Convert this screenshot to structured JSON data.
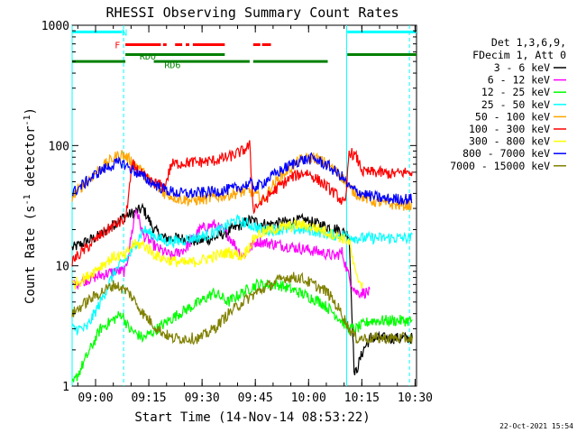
{
  "chart_data": {
    "type": "line",
    "title": "RHESSI Observing Summary Count Rates",
    "xlabel": "Start Time (14-Nov-14 08:53:22)",
    "ylabel_main": "Count Rate (s",
    "ylabel_sup1": "-1",
    "ylabel_mid": " detector",
    "ylabel_sup2": "-1",
    "ylabel_end": ")",
    "y_scale": "log",
    "ylim": [
      1,
      1000
    ],
    "y_ticks": [
      {
        "v": 1,
        "label": "1"
      },
      {
        "v": 10,
        "label": "10"
      },
      {
        "v": 100,
        "label": "100"
      },
      {
        "v": 1000,
        "label": "1000"
      }
    ],
    "x_unit": "minutes since 08:53:22",
    "xlim": [
      0,
      97
    ],
    "x_ticks": [
      {
        "t": 6.6,
        "label": "09:00"
      },
      {
        "t": 21.6,
        "label": "09:15"
      },
      {
        "t": 36.6,
        "label": "09:30"
      },
      {
        "t": 51.6,
        "label": "09:45"
      },
      {
        "t": 66.6,
        "label": "10:00"
      },
      {
        "t": 81.6,
        "label": "10:15"
      },
      {
        "t": 96.6,
        "label": "10:30"
      }
    ],
    "legend_header": [
      "Det 1,3,6,9,",
      "FDecim 1, Att 0"
    ],
    "series": [
      {
        "name": "3 - 6 keV",
        "color": "#000000",
        "points": [
          [
            0,
            14
          ],
          [
            8,
            18
          ],
          [
            14,
            25
          ],
          [
            20,
            30
          ],
          [
            23,
            20
          ],
          [
            26,
            17
          ],
          [
            30,
            17
          ],
          [
            35,
            16
          ],
          [
            40,
            17
          ],
          [
            45,
            20
          ],
          [
            50,
            24
          ],
          [
            55,
            22
          ],
          [
            60,
            23
          ],
          [
            65,
            24
          ],
          [
            70,
            22
          ],
          [
            75,
            20
          ],
          [
            78,
            18
          ],
          [
            79.5,
            1.2
          ],
          [
            82,
            2
          ],
          [
            84,
            2.5
          ],
          [
            88,
            2.5
          ],
          [
            92,
            2.5
          ],
          [
            96,
            2.5
          ]
        ]
      },
      {
        "name": "6 - 12 keV",
        "color": "#ff00ff",
        "points": [
          [
            0,
            7
          ],
          [
            6,
            8
          ],
          [
            12,
            9
          ],
          [
            15,
            9
          ],
          [
            18,
            30
          ],
          [
            20,
            18
          ],
          [
            24,
            14
          ],
          [
            28,
            12
          ],
          [
            32,
            14
          ],
          [
            36,
            20
          ],
          [
            40,
            22
          ],
          [
            44,
            18
          ],
          [
            48,
            12
          ],
          [
            52,
            16
          ],
          [
            58,
            15
          ],
          [
            64,
            14
          ],
          [
            70,
            13
          ],
          [
            74,
            12
          ],
          [
            76,
            13
          ],
          [
            78,
            8
          ],
          [
            80,
            6
          ],
          [
            84,
            6
          ]
        ]
      },
      {
        "name": "12 - 25 keV",
        "color": "#00ff00",
        "points": [
          [
            0,
            1
          ],
          [
            8,
            3
          ],
          [
            14,
            4
          ],
          [
            16,
            3
          ],
          [
            20,
            2.5
          ],
          [
            24,
            3
          ],
          [
            30,
            4
          ],
          [
            36,
            5
          ],
          [
            40,
            6
          ],
          [
            44,
            5
          ],
          [
            48,
            6
          ],
          [
            52,
            7
          ],
          [
            58,
            7
          ],
          [
            64,
            6
          ],
          [
            70,
            5
          ],
          [
            74,
            4
          ],
          [
            78,
            3
          ],
          [
            80,
            3
          ],
          [
            84,
            3.5
          ],
          [
            90,
            3.5
          ],
          [
            96,
            3.5
          ]
        ]
      },
      {
        "name": "25 - 50 keV",
        "color": "#00ffff",
        "points": [
          [
            0,
            3
          ],
          [
            4,
            3
          ],
          [
            8,
            5
          ],
          [
            12,
            9
          ],
          [
            16,
            12
          ],
          [
            20,
            20
          ],
          [
            23,
            18
          ],
          [
            26,
            16
          ],
          [
            30,
            16
          ],
          [
            34,
            17
          ],
          [
            38,
            18
          ],
          [
            42,
            20
          ],
          [
            46,
            24
          ],
          [
            50,
            22
          ],
          [
            54,
            20
          ],
          [
            58,
            20
          ],
          [
            62,
            20
          ],
          [
            66,
            20
          ],
          [
            70,
            19
          ],
          [
            74,
            18
          ],
          [
            78,
            18
          ],
          [
            80,
            17
          ],
          [
            84,
            17
          ],
          [
            88,
            17
          ],
          [
            92,
            17
          ],
          [
            96,
            17
          ]
        ]
      },
      {
        "name": "50 - 100 keV",
        "color": "#ffa500",
        "points": [
          [
            0,
            38
          ],
          [
            4,
            50
          ],
          [
            8,
            65
          ],
          [
            12,
            80
          ],
          [
            14,
            85
          ],
          [
            18,
            70
          ],
          [
            22,
            50
          ],
          [
            26,
            40
          ],
          [
            30,
            36
          ],
          [
            34,
            35
          ],
          [
            38,
            36
          ],
          [
            42,
            38
          ],
          [
            46,
            40
          ],
          [
            50,
            42
          ],
          [
            54,
            35
          ],
          [
            56,
            45
          ],
          [
            60,
            60
          ],
          [
            64,
            75
          ],
          [
            68,
            80
          ],
          [
            72,
            70
          ],
          [
            76,
            55
          ],
          [
            78,
            45
          ],
          [
            80,
            40
          ],
          [
            84,
            35
          ],
          [
            88,
            33
          ],
          [
            92,
            32
          ],
          [
            96,
            32
          ]
        ]
      },
      {
        "name": "100 - 300 keV",
        "color": "#ff0000",
        "points": [
          [
            0,
            11
          ],
          [
            4,
            14
          ],
          [
            8,
            18
          ],
          [
            12,
            22
          ],
          [
            15,
            24
          ],
          [
            17,
            70
          ],
          [
            19,
            60
          ],
          [
            22,
            50
          ],
          [
            24,
            48
          ],
          [
            26,
            45
          ],
          [
            28,
            70
          ],
          [
            32,
            72
          ],
          [
            36,
            73
          ],
          [
            40,
            75
          ],
          [
            44,
            80
          ],
          [
            48,
            90
          ],
          [
            50,
            100
          ],
          [
            51,
            30
          ],
          [
            54,
            35
          ],
          [
            58,
            45
          ],
          [
            62,
            55
          ],
          [
            66,
            60
          ],
          [
            70,
            50
          ],
          [
            74,
            40
          ],
          [
            77,
            32
          ],
          [
            78,
            90
          ],
          [
            80,
            80
          ],
          [
            82,
            60
          ],
          [
            86,
            60
          ],
          [
            90,
            58
          ],
          [
            94,
            60
          ],
          [
            96,
            60
          ]
        ]
      },
      {
        "name": "300 - 800 keV",
        "color": "#ffff00",
        "points": [
          [
            0,
            7
          ],
          [
            4,
            8
          ],
          [
            8,
            10
          ],
          [
            12,
            12
          ],
          [
            15,
            12
          ],
          [
            17,
            15
          ],
          [
            20,
            15
          ],
          [
            24,
            12
          ],
          [
            28,
            11
          ],
          [
            32,
            10.5
          ],
          [
            36,
            11
          ],
          [
            40,
            12
          ],
          [
            44,
            13
          ],
          [
            48,
            12
          ],
          [
            52,
            18
          ],
          [
            56,
            20
          ],
          [
            60,
            21
          ],
          [
            64,
            22
          ],
          [
            68,
            21
          ],
          [
            72,
            19
          ],
          [
            76,
            17
          ],
          [
            78,
            16
          ],
          [
            80,
            8
          ],
          [
            82,
            7
          ]
        ]
      },
      {
        "name": "800 - 7000 keV",
        "color": "#0000ff",
        "points": [
          [
            0,
            40
          ],
          [
            4,
            50
          ],
          [
            8,
            62
          ],
          [
            12,
            70
          ],
          [
            14,
            72
          ],
          [
            18,
            60
          ],
          [
            22,
            50
          ],
          [
            26,
            43
          ],
          [
            30,
            40
          ],
          [
            34,
            40
          ],
          [
            38,
            41
          ],
          [
            42,
            42
          ],
          [
            46,
            44
          ],
          [
            50,
            48
          ],
          [
            52,
            45
          ],
          [
            56,
            55
          ],
          [
            60,
            65
          ],
          [
            64,
            75
          ],
          [
            68,
            78
          ],
          [
            72,
            68
          ],
          [
            76,
            55
          ],
          [
            78,
            45
          ],
          [
            80,
            42
          ],
          [
            84,
            38
          ],
          [
            88,
            36
          ],
          [
            92,
            36
          ],
          [
            96,
            36
          ]
        ]
      },
      {
        "name": "7000 - 15000 keV",
        "color": "#808000",
        "points": [
          [
            0,
            4
          ],
          [
            4,
            5
          ],
          [
            8,
            6
          ],
          [
            12,
            7
          ],
          [
            16,
            6
          ],
          [
            20,
            4
          ],
          [
            24,
            3
          ],
          [
            28,
            2.5
          ],
          [
            32,
            2.5
          ],
          [
            36,
            2.5
          ],
          [
            40,
            3
          ],
          [
            44,
            4
          ],
          [
            48,
            5
          ],
          [
            52,
            6
          ],
          [
            56,
            7
          ],
          [
            60,
            8
          ],
          [
            64,
            8
          ],
          [
            68,
            7
          ],
          [
            72,
            6
          ],
          [
            76,
            4
          ],
          [
            78,
            3
          ],
          [
            80,
            2.5
          ],
          [
            84,
            2.5
          ],
          [
            88,
            2.5
          ],
          [
            92,
            2.5
          ],
          [
            96,
            2.5
          ]
        ]
      }
    ],
    "annotations": [
      {
        "label": "N",
        "color": "#00ffff",
        "x": 14,
        "y": 880
      },
      {
        "label": "F",
        "color": "#ff0000",
        "x": 12,
        "y": 690
      },
      {
        "label": "RDO",
        "color": "#008000",
        "x": 19,
        "y": 555
      },
      {
        "label": "RD6",
        "color": "#008000",
        "x": 26,
        "y": 470
      }
    ],
    "flag_bars": [
      {
        "name": "night",
        "color": "#00ffff",
        "y": 880,
        "segments": [
          [
            0,
            14
          ],
          [
            77.5,
            97
          ]
        ]
      },
      {
        "name": "flare",
        "color": "#ff0000",
        "y": 690,
        "segments": [
          [
            15,
            25
          ],
          [
            25.6,
            26.6
          ],
          [
            29,
            31
          ],
          [
            32,
            33
          ],
          [
            34,
            43
          ],
          [
            51,
            53
          ],
          [
            53.5,
            56
          ]
        ]
      },
      {
        "name": "decim",
        "color": "#008000",
        "y": 570,
        "segments": [
          [
            15,
            43
          ],
          [
            77.5,
            97
          ]
        ]
      },
      {
        "name": "decim2",
        "color": "#008000",
        "y": 500,
        "segments": [
          [
            0,
            15
          ],
          [
            23,
            50
          ],
          [
            51,
            72
          ]
        ]
      }
    ],
    "vlines": [
      {
        "color": "#00ffff",
        "style": "solid",
        "x": 0
      },
      {
        "color": "#00ffff",
        "style": "dashed",
        "x": 14.5
      },
      {
        "color": "#00ffff",
        "style": "solid",
        "x": 77.3
      },
      {
        "color": "#00ffff",
        "style": "dashed",
        "x": 95
      }
    ],
    "footer": "22-Oct-2021 15:54"
  }
}
